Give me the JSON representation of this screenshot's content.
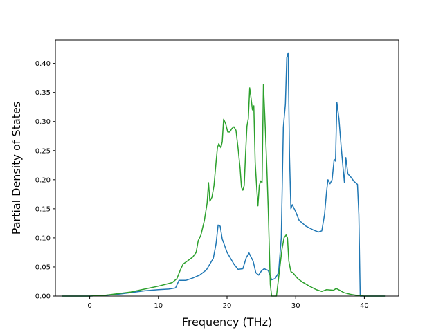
{
  "chart_data": {
    "type": "line",
    "title": "",
    "xlabel": "Frequency (THz)",
    "ylabel": "Partial Density of States",
    "xlim": [
      -5,
      45
    ],
    "ylim": [
      0,
      0.44
    ],
    "grid": false,
    "x_ticks": [
      0,
      10,
      20,
      30,
      40
    ],
    "x_tick_labels": [
      "0",
      "10",
      "20",
      "30",
      "40"
    ],
    "y_ticks": [
      0.0,
      0.05,
      0.1,
      0.15,
      0.2,
      0.25,
      0.3,
      0.35,
      0.4
    ],
    "y_tick_labels": [
      "0.00",
      "0.05",
      "0.10",
      "0.15",
      "0.20",
      "0.25",
      "0.30",
      "0.35",
      "0.40"
    ],
    "series": [
      {
        "color": "#1f77b4",
        "points": [
          [
            -4,
            0
          ],
          [
            0,
            0
          ],
          [
            2,
            0.001
          ],
          [
            4,
            0.003
          ],
          [
            6,
            0.006
          ],
          [
            8,
            0.009
          ],
          [
            10,
            0.011
          ],
          [
            11.5,
            0.012
          ],
          [
            12.5,
            0.014
          ],
          [
            13,
            0.027
          ],
          [
            14,
            0.027
          ],
          [
            15,
            0.031
          ],
          [
            16,
            0.036
          ],
          [
            17,
            0.045
          ],
          [
            18,
            0.065
          ],
          [
            18.4,
            0.09
          ],
          [
            18.7,
            0.122
          ],
          [
            19,
            0.12
          ],
          [
            19.3,
            0.098
          ],
          [
            19.7,
            0.085
          ],
          [
            20,
            0.075
          ],
          [
            21,
            0.055
          ],
          [
            21.6,
            0.046
          ],
          [
            22.3,
            0.047
          ],
          [
            22.8,
            0.066
          ],
          [
            23.2,
            0.074
          ],
          [
            23.8,
            0.06
          ],
          [
            24.2,
            0.04
          ],
          [
            24.6,
            0.036
          ],
          [
            25,
            0.043
          ],
          [
            25.4,
            0.047
          ],
          [
            26,
            0.044
          ],
          [
            26.5,
            0.028
          ],
          [
            27,
            0.03
          ],
          [
            27.5,
            0.04
          ],
          [
            27.9,
            0.1
          ],
          [
            28.2,
            0.29
          ],
          [
            28.5,
            0.33
          ],
          [
            28.7,
            0.41
          ],
          [
            28.9,
            0.418
          ],
          [
            29.1,
            0.24
          ],
          [
            29.3,
            0.15
          ],
          [
            29.5,
            0.157
          ],
          [
            30,
            0.145
          ],
          [
            30.5,
            0.13
          ],
          [
            31.5,
            0.12
          ],
          [
            32.5,
            0.114
          ],
          [
            33.3,
            0.11
          ],
          [
            33.8,
            0.112
          ],
          [
            34.2,
            0.14
          ],
          [
            34.5,
            0.18
          ],
          [
            34.7,
            0.2
          ],
          [
            35,
            0.193
          ],
          [
            35.3,
            0.2
          ],
          [
            35.6,
            0.235
          ],
          [
            35.8,
            0.232
          ],
          [
            36,
            0.333
          ],
          [
            36.3,
            0.305
          ],
          [
            36.6,
            0.26
          ],
          [
            36.9,
            0.22
          ],
          [
            37.1,
            0.195
          ],
          [
            37.3,
            0.238
          ],
          [
            37.6,
            0.21
          ],
          [
            38,
            0.205
          ],
          [
            38.5,
            0.197
          ],
          [
            39,
            0.192
          ],
          [
            39.2,
            0.14
          ],
          [
            39.4,
            0
          ],
          [
            41,
            0
          ],
          [
            43,
            0
          ]
        ]
      },
      {
        "color": "#2ca02c",
        "points": [
          [
            -4,
            0
          ],
          [
            0,
            0
          ],
          [
            2,
            0.001
          ],
          [
            4,
            0.004
          ],
          [
            6,
            0.007
          ],
          [
            8,
            0.012
          ],
          [
            10,
            0.017
          ],
          [
            12,
            0.023
          ],
          [
            12.7,
            0.03
          ],
          [
            13.2,
            0.045
          ],
          [
            13.6,
            0.055
          ],
          [
            14.2,
            0.06
          ],
          [
            15,
            0.067
          ],
          [
            15.5,
            0.075
          ],
          [
            15.8,
            0.095
          ],
          [
            16.2,
            0.105
          ],
          [
            16.7,
            0.13
          ],
          [
            17.1,
            0.16
          ],
          [
            17.3,
            0.195
          ],
          [
            17.5,
            0.163
          ],
          [
            17.8,
            0.17
          ],
          [
            18.1,
            0.19
          ],
          [
            18.4,
            0.23
          ],
          [
            18.6,
            0.255
          ],
          [
            18.8,
            0.262
          ],
          [
            19.1,
            0.255
          ],
          [
            19.3,
            0.265
          ],
          [
            19.5,
            0.304
          ],
          [
            19.8,
            0.296
          ],
          [
            20.1,
            0.282
          ],
          [
            20.4,
            0.282
          ],
          [
            20.7,
            0.288
          ],
          [
            21,
            0.291
          ],
          [
            21.3,
            0.285
          ],
          [
            21.6,
            0.255
          ],
          [
            21.9,
            0.22
          ],
          [
            22.1,
            0.187
          ],
          [
            22.3,
            0.182
          ],
          [
            22.5,
            0.19
          ],
          [
            22.7,
            0.245
          ],
          [
            22.9,
            0.292
          ],
          [
            23.1,
            0.305
          ],
          [
            23.3,
            0.358
          ],
          [
            23.5,
            0.34
          ],
          [
            23.7,
            0.32
          ],
          [
            23.9,
            0.327
          ],
          [
            24.1,
            0.23
          ],
          [
            24.3,
            0.19
          ],
          [
            24.5,
            0.155
          ],
          [
            24.7,
            0.19
          ],
          [
            24.9,
            0.198
          ],
          [
            25.1,
            0.195
          ],
          [
            25.3,
            0.364
          ],
          [
            25.5,
            0.31
          ],
          [
            25.8,
            0.22
          ],
          [
            26,
            0.15
          ],
          [
            26.3,
            0.02
          ],
          [
            26.5,
            0
          ],
          [
            27.2,
            0
          ],
          [
            27.6,
            0.04
          ],
          [
            28,
            0.08
          ],
          [
            28.3,
            0.1
          ],
          [
            28.6,
            0.105
          ],
          [
            28.8,
            0.1
          ],
          [
            29,
            0.06
          ],
          [
            29.3,
            0.042
          ],
          [
            29.6,
            0.04
          ],
          [
            30.3,
            0.03
          ],
          [
            31,
            0.024
          ],
          [
            32,
            0.017
          ],
          [
            33,
            0.011
          ],
          [
            33.8,
            0.008
          ],
          [
            34.5,
            0.011
          ],
          [
            35.5,
            0.01
          ],
          [
            35.9,
            0.013
          ],
          [
            36.4,
            0.01
          ],
          [
            37,
            0.006
          ],
          [
            38,
            0.003
          ],
          [
            39,
            0.001
          ],
          [
            40,
            0
          ],
          [
            43,
            0
          ]
        ]
      }
    ]
  }
}
